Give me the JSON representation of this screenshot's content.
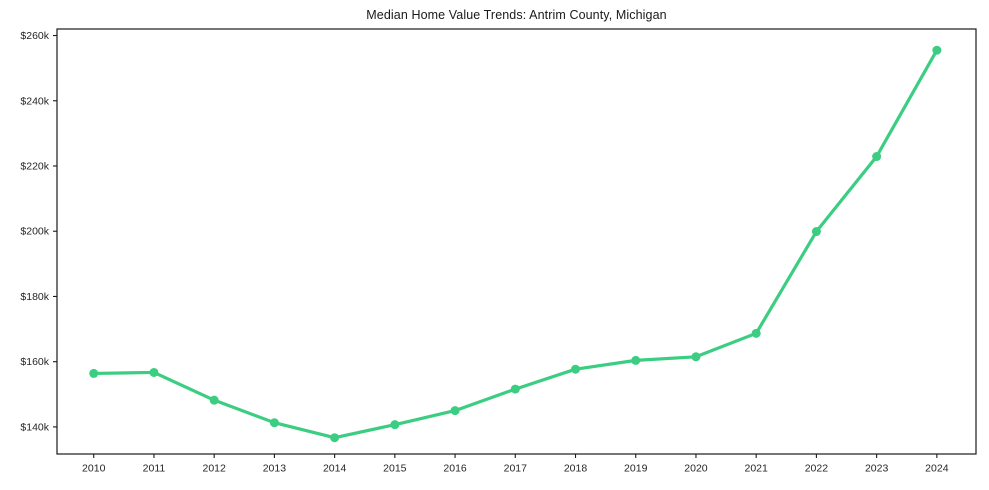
{
  "figure": {
    "background": "#ffffff"
  },
  "chart_data": {
    "type": "line",
    "title": "Median Home Value Trends: Antrim County, Michigan",
    "xlabel": "",
    "ylabel": "",
    "unit": "thousand USD",
    "x": [
      2010,
      2011,
      2012,
      2013,
      2014,
      2015,
      2016,
      2017,
      2018,
      2019,
      2020,
      2021,
      2022,
      2023,
      2024
    ],
    "x_labels": [
      "2010",
      "2011",
      "2012",
      "2013",
      "2014",
      "2015",
      "2016",
      "2017",
      "2018",
      "2019",
      "2020",
      "2021",
      "2022",
      "2023",
      "2024"
    ],
    "values": [
      156.4,
      156.7,
      148.2,
      141.3,
      136.7,
      140.7,
      145.0,
      151.6,
      157.7,
      160.4,
      161.5,
      168.7,
      199.9,
      222.9,
      255.5
    ],
    "y_ticks": [
      140,
      160,
      180,
      200,
      220,
      240,
      260
    ],
    "y_tick_labels": [
      "$140k",
      "$160k",
      "$180k",
      "$200k",
      "$220k",
      "$240k",
      "$260k"
    ],
    "xlim": [
      2009.39,
      2024.65
    ],
    "ylim": [
      131.7,
      262.0
    ],
    "grid": false,
    "legend": "none",
    "line_color": "#3bcd81",
    "line_width": 3.2,
    "marker": "circle",
    "marker_radius": 4.5,
    "spine_color": "#1a1a1a",
    "tick_text_color": "#262626"
  }
}
